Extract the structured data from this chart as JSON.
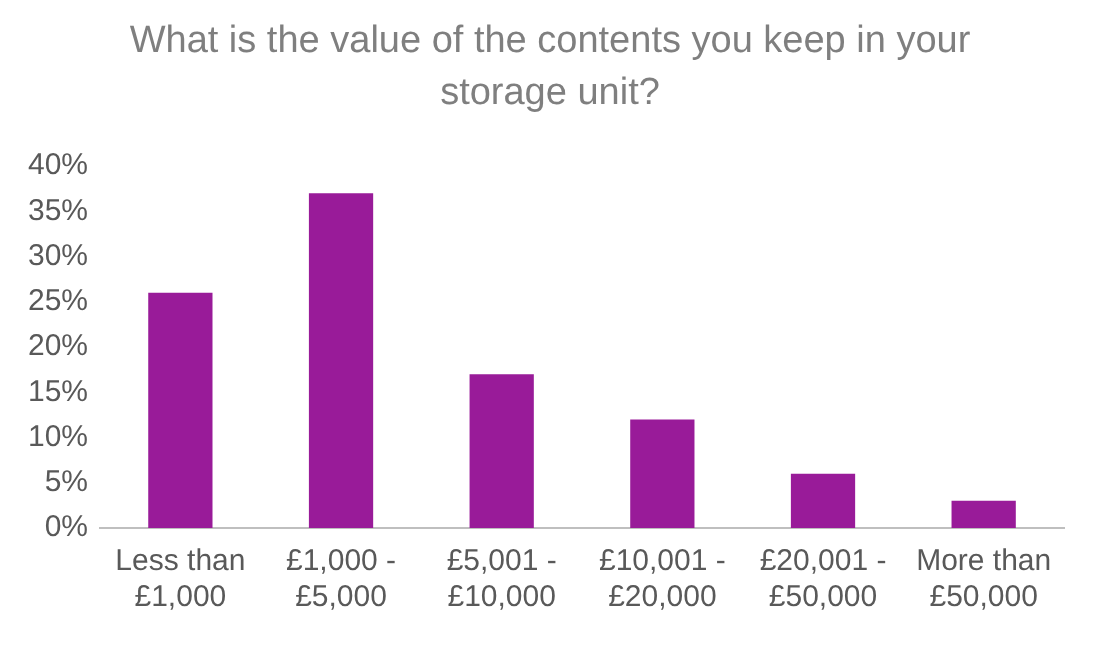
{
  "chart_data": {
    "type": "bar",
    "title": "What is the value of the contents you keep in your storage unit?",
    "categories": [
      "Less than £1,000",
      "£1,000 - £5,000",
      "£5,001 - £10,000",
      "£10,001 - £20,000",
      "£20,001 - £50,000",
      "More than £50,000"
    ],
    "values": [
      26,
      37,
      17,
      12,
      6,
      3
    ],
    "color": "#991b99",
    "ylim": [
      0,
      40
    ],
    "yticks": [
      {
        "value": 0,
        "label": "0%"
      },
      {
        "value": 5,
        "label": "5%"
      },
      {
        "value": 10,
        "label": "10%"
      },
      {
        "value": 15,
        "label": "15%"
      },
      {
        "value": 20,
        "label": "20%"
      },
      {
        "value": 25,
        "label": "25%"
      },
      {
        "value": 30,
        "label": "30%"
      },
      {
        "value": 35,
        "label": "35%"
      },
      {
        "value": 40,
        "label": "40%"
      }
    ],
    "grid": false,
    "legend": false
  }
}
